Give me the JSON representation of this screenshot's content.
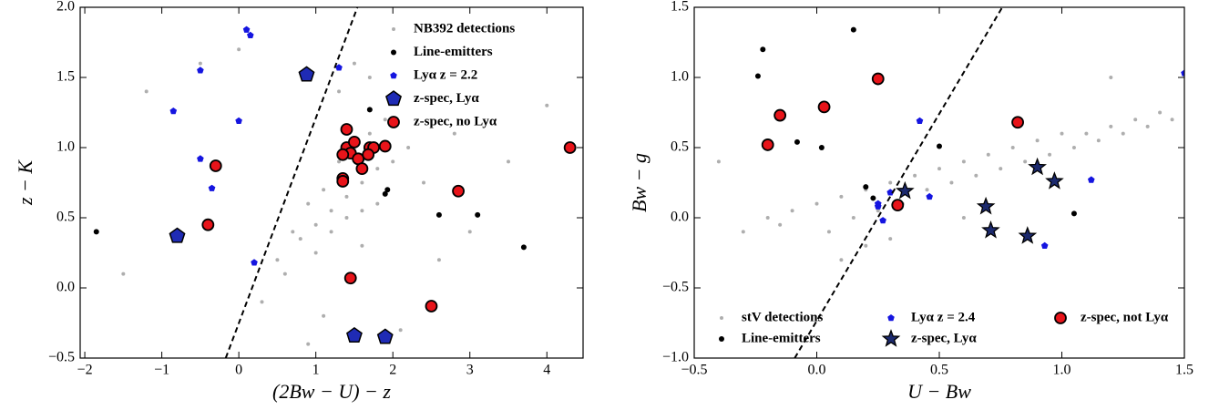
{
  "chart_data": [
    {
      "type": "scatter",
      "xlabel": "(2Bw − U) − z",
      "ylabel": "z − K",
      "xlim": [
        -2.06,
        4.47
      ],
      "ylim": [
        -0.5,
        2.0
      ],
      "xticks": [
        {
          "value": -2,
          "label": "−2"
        },
        {
          "value": -1,
          "label": "−1"
        },
        0,
        1,
        2,
        3,
        4
      ],
      "yticks": [
        {
          "value": -0.5,
          "label": "−0.5"
        },
        {
          "value": 0,
          "label": "0.0"
        },
        {
          "value": 0.5,
          "label": "0.5"
        },
        {
          "value": 1,
          "label": "1.0"
        },
        {
          "value": 1.5,
          "label": "1.5"
        },
        {
          "value": 2,
          "label": "2.0"
        }
      ],
      "legend": "upper right",
      "lines": [
        {
          "x": [
            -0.17,
            1.54
          ],
          "y": [
            -0.5,
            2.0
          ],
          "color": "#000000",
          "style": "dashed"
        }
      ],
      "series": [
        {
          "name": "NB392 detections",
          "color": "#9a9a9a",
          "marker": "dot",
          "x": [
            0.5,
            0.8,
            1.0,
            1.2,
            1.4,
            1.6,
            1.8,
            2.0,
            0.9,
            1.1,
            1.3,
            1.5,
            1.7,
            1.9,
            2.2,
            0.7,
            1.0,
            1.2,
            1.4,
            1.6,
            1.8,
            2.4,
            0.6,
            0.3,
            2.6,
            3.0,
            -0.5,
            -1.2,
            3.5,
            4.0,
            1.3,
            1.5,
            1.1,
            0.9,
            2.1,
            -1.5,
            0.0,
            1.7,
            2.8,
            1.6
          ],
          "values": [
            0.2,
            0.35,
            0.45,
            0.55,
            0.65,
            0.75,
            0.85,
            0.9,
            0.6,
            0.7,
            0.9,
            1.0,
            1.1,
            1.2,
            1.0,
            0.4,
            0.25,
            0.4,
            0.5,
            0.55,
            0.6,
            0.75,
            0.1,
            -0.1,
            0.2,
            0.4,
            1.6,
            1.4,
            0.9,
            1.3,
            1.4,
            1.6,
            -0.2,
            -0.4,
            -0.3,
            0.1,
            1.7,
            1.5,
            1.1,
            0.3
          ]
        },
        {
          "name": "Line-emitters",
          "color": "#000000",
          "marker": "blackdot",
          "x": [
            1.7,
            1.93,
            1.9,
            2.6,
            3.1,
            3.7,
            -1.85
          ],
          "values": [
            1.27,
            0.7,
            0.67,
            0.52,
            0.52,
            0.29,
            0.4
          ]
        },
        {
          "name": "Lyα z = 2.2",
          "color": "#1515e0",
          "marker": "pentagon",
          "x": [
            0.1,
            0.15,
            -0.5,
            -0.85,
            0.0,
            -0.5,
            -0.35,
            0.2,
            1.3
          ],
          "values": [
            1.84,
            1.8,
            1.55,
            1.26,
            1.19,
            0.92,
            0.71,
            0.18,
            1.57
          ]
        },
        {
          "name": "z-spec, Lyα",
          "color": "#1f2bb5",
          "marker": "bigpentagon",
          "x": [
            0.88,
            -0.8,
            1.5,
            1.9
          ],
          "values": [
            1.52,
            0.37,
            -0.34,
            -0.35
          ]
        },
        {
          "name": "z-spec, no Lyα",
          "color": "#e8141a",
          "marker": "circle",
          "x": [
            1.4,
            1.4,
            1.5,
            1.45,
            1.35,
            1.55,
            1.7,
            1.75,
            1.9,
            1.68,
            1.6,
            1.35,
            1.35,
            -0.3,
            -0.4,
            2.85,
            4.3,
            1.45,
            2.5
          ],
          "values": [
            1.13,
            1.0,
            1.04,
            0.96,
            0.95,
            0.92,
            1.0,
            1.0,
            1.01,
            0.95,
            0.85,
            0.78,
            0.76,
            0.87,
            0.45,
            0.69,
            1.0,
            0.07,
            -0.13
          ]
        }
      ]
    },
    {
      "type": "scatter",
      "xlabel": "U − Bw",
      "ylabel": "Bw − g",
      "xlim": [
        -0.5,
        1.5
      ],
      "ylim": [
        -1.0,
        1.5
      ],
      "xticks": [
        {
          "value": -0.5,
          "label": "−0.5"
        },
        {
          "value": 0,
          "label": "0.0"
        },
        {
          "value": 0.5,
          "label": "0.5"
        },
        {
          "value": 1,
          "label": "1.0"
        },
        {
          "value": 1.5,
          "label": "1.5"
        }
      ],
      "yticks": [
        {
          "value": -1,
          "label": "−1.0"
        },
        {
          "value": -0.5,
          "label": "−0.5"
        },
        {
          "value": 0,
          "label": "0.0"
        },
        {
          "value": 0.5,
          "label": "0.5"
        },
        {
          "value": 1,
          "label": "1.0"
        },
        {
          "value": 1.5,
          "label": "1.5"
        }
      ],
      "legend": "lower center",
      "lines": [
        {
          "x": [
            -0.09,
            0.757
          ],
          "y": [
            -1.0,
            1.5
          ],
          "color": "#000000",
          "style": "dashed"
        }
      ],
      "series": [
        {
          "name": "stV detections",
          "color": "#9a9a9a",
          "marker": "dot",
          "x": [
            -0.2,
            -0.1,
            0.0,
            0.1,
            0.2,
            0.3,
            0.4,
            0.5,
            0.6,
            0.7,
            0.8,
            0.9,
            1.0,
            1.1,
            1.2,
            1.3,
            1.4,
            -0.3,
            -0.15,
            0.05,
            0.15,
            0.25,
            0.35,
            0.45,
            0.55,
            0.65,
            0.75,
            0.85,
            0.95,
            1.05,
            1.15,
            1.25,
            1.35,
            1.45,
            0.1,
            0.2,
            0.3,
            -0.4,
            0.6,
            1.2
          ],
          "values": [
            0.0,
            0.05,
            0.1,
            0.15,
            0.2,
            0.25,
            0.3,
            0.35,
            0.4,
            0.45,
            0.5,
            0.55,
            0.6,
            0.6,
            0.65,
            0.7,
            0.75,
            -0.1,
            -0.05,
            -0.1,
            0.0,
            0.05,
            0.1,
            0.2,
            0.25,
            0.3,
            0.35,
            0.4,
            0.45,
            0.5,
            0.55,
            0.6,
            0.65,
            0.7,
            -0.3,
            -0.2,
            -0.15,
            0.4,
            0.0,
            1.0
          ]
        },
        {
          "name": "Line-emitters",
          "color": "#000000",
          "marker": "blackdot",
          "x": [
            -0.22,
            -0.24,
            0.15,
            -0.08,
            0.02,
            0.5,
            0.2,
            0.23,
            1.05
          ],
          "values": [
            1.2,
            1.01,
            1.34,
            0.54,
            0.5,
            0.51,
            0.22,
            0.14,
            0.03
          ]
        },
        {
          "name": "Lyα z = 2.4",
          "color": "#1515e0",
          "marker": "pentagon",
          "x": [
            0.42,
            0.25,
            0.25,
            0.27,
            0.3,
            0.46,
            0.93,
            1.12,
            1.5
          ],
          "values": [
            0.69,
            0.08,
            0.1,
            -0.02,
            0.18,
            0.15,
            -0.2,
            0.27,
            1.03
          ]
        },
        {
          "name": "z-spec, Lyα",
          "color": "#1c2a6e",
          "marker": "star",
          "x": [
            0.36,
            0.9,
            0.97,
            0.69,
            0.71,
            0.86
          ],
          "values": [
            0.19,
            0.36,
            0.26,
            0.08,
            -0.09,
            -0.13
          ]
        },
        {
          "name": "z-spec, not Lyα",
          "color": "#e8141a",
          "marker": "circle",
          "x": [
            -0.15,
            -0.2,
            0.03,
            0.25,
            0.33,
            0.82
          ],
          "values": [
            0.73,
            0.52,
            0.79,
            0.99,
            0.09,
            0.68
          ]
        }
      ]
    }
  ]
}
